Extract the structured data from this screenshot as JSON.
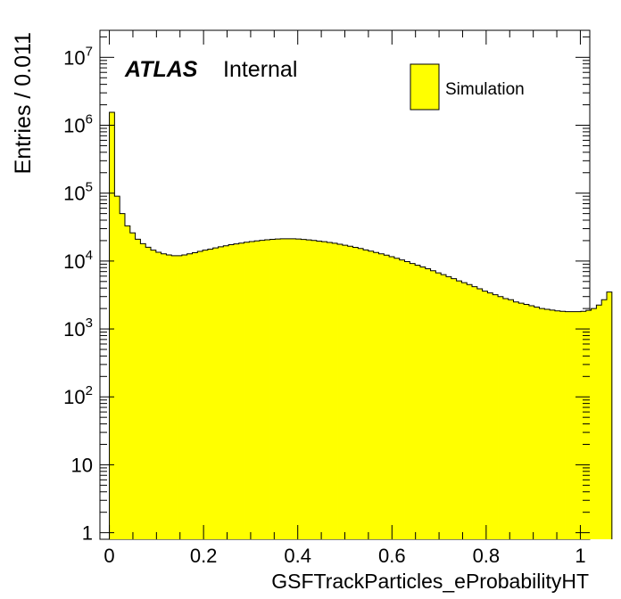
{
  "chart_data": {
    "type": "bar",
    "histogram": true,
    "xlabel": "GSFTrackParticles_eProbabilityHT",
    "ylabel": "Entries / 0.011",
    "y_scale": "log",
    "xlim": [
      -0.02,
      1.02
    ],
    "ylim": [
      0.8,
      25000000
    ],
    "bin_width": 0.011,
    "x_ticks": [
      {
        "value": 0,
        "label": "0"
      },
      {
        "value": 0.2,
        "label": "0.2"
      },
      {
        "value": 0.4,
        "label": "0.4"
      },
      {
        "value": 0.6,
        "label": "0.6"
      },
      {
        "value": 0.8,
        "label": "0.8"
      },
      {
        "value": 1,
        "label": "1"
      }
    ],
    "y_ticks": [
      {
        "value": 1,
        "base": "1",
        "exp": ""
      },
      {
        "value": 10,
        "base": "10",
        "exp": ""
      },
      {
        "value": 100,
        "base": "10",
        "exp": "2"
      },
      {
        "value": 1000,
        "base": "10",
        "exp": "3"
      },
      {
        "value": 10000,
        "base": "10",
        "exp": "4"
      },
      {
        "value": 100000,
        "base": "10",
        "exp": "5"
      },
      {
        "value": 1000000,
        "base": "10",
        "exp": "6"
      },
      {
        "value": 10000000,
        "base": "10",
        "exp": "7"
      }
    ],
    "label_atlas": "ATLAS",
    "label_internal": "Internal",
    "fill_color": "#ffff00",
    "line_color": "#000000",
    "legend": {
      "position": "top-right",
      "entries": [
        {
          "label": "Simulation",
          "color": "#ffff00"
        }
      ]
    },
    "series": [
      {
        "name": "Simulation",
        "x0": 0,
        "values": [
          1550000,
          90000,
          50000,
          33000,
          26000,
          21000,
          18000,
          16000,
          14500,
          13500,
          12800,
          12300,
          12000,
          12000,
          12300,
          12800,
          13300,
          13900,
          14500,
          15000,
          15600,
          16200,
          16800,
          17400,
          17900,
          18400,
          18900,
          19400,
          19800,
          20200,
          20600,
          20900,
          21100,
          21300,
          21300,
          21300,
          21100,
          20800,
          20500,
          20100,
          19700,
          19300,
          18800,
          18300,
          17700,
          17100,
          16500,
          15900,
          15300,
          14600,
          14000,
          13400,
          12800,
          12200,
          11600,
          11000,
          10400,
          9800,
          9200,
          8700,
          8200,
          7700,
          7200,
          6700,
          6300,
          5900,
          5500,
          5100,
          4800,
          4500,
          4200,
          3900,
          3600,
          3400,
          3200,
          3000,
          2800,
          2700,
          2500,
          2400,
          2300,
          2200,
          2100,
          2000,
          1950,
          1900,
          1850,
          1820,
          1800,
          1800,
          1800,
          1820,
          1880,
          2000,
          2250,
          2700,
          3500
        ]
      }
    ]
  }
}
